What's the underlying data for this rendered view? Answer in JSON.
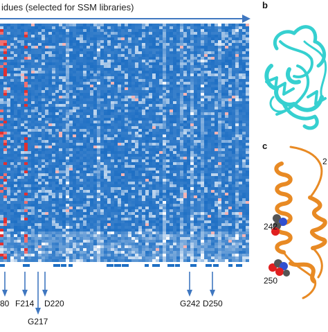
{
  "panel_a": {
    "header": "idues (selected for SSM libraries)",
    "residue_labels": [
      "80",
      "F214",
      "D220",
      "G217",
      "G242",
      "D250"
    ]
  },
  "panel_b": {
    "letter": "b"
  },
  "panel_c": {
    "letter": "c",
    "labels": [
      "242",
      "250",
      "2"
    ]
  },
  "colors": {
    "heat_blue": "#1e6fc4",
    "heat_light": "#cfe3f6",
    "heat_red": "#e23030",
    "arrow_blue": "#3f77c0",
    "protein_cyan": "#36d0d0",
    "protein_orange": "#e88a24"
  }
}
